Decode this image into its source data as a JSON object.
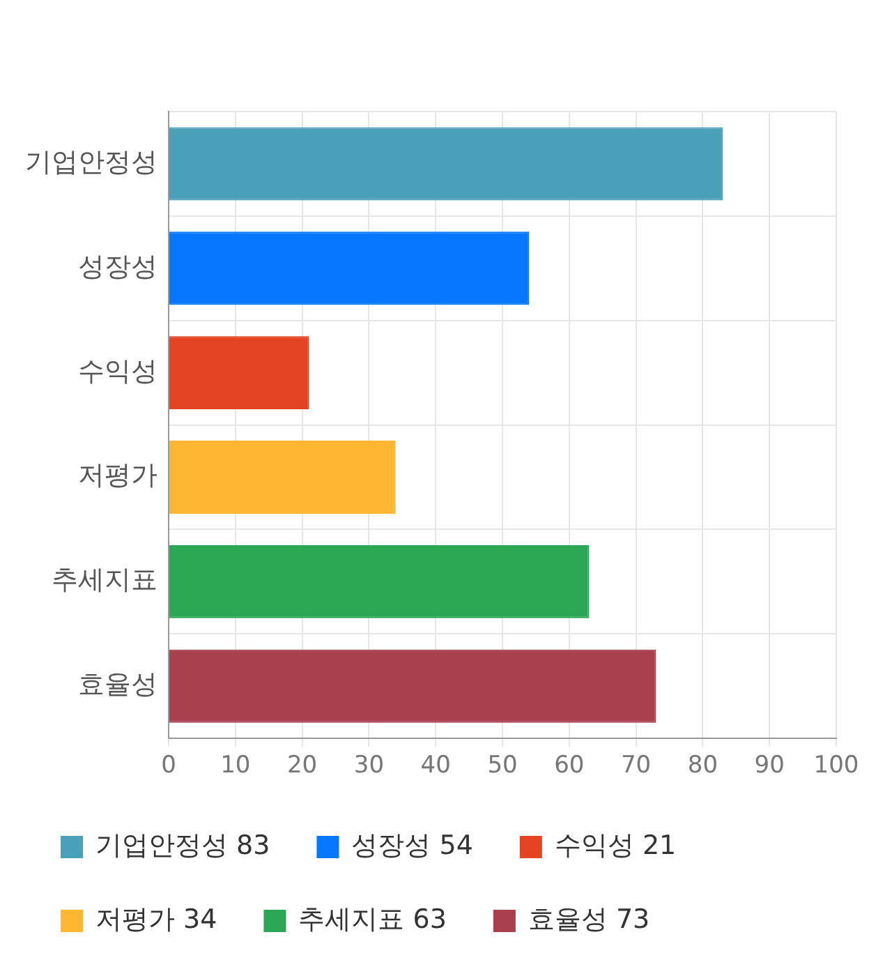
{
  "chart_data": {
    "type": "bar",
    "orientation": "horizontal",
    "stacked": true,
    "categories": [
      "기업안정성",
      "성장성",
      "수익성",
      "저평가",
      "추세지표",
      "효율성"
    ],
    "series": [
      {
        "name": "기업안정성 83",
        "color": "#4aa0b8",
        "values": [
          83,
          null,
          null,
          null,
          null,
          null
        ]
      },
      {
        "name": "성장성 54",
        "color": "#0578ff",
        "values": [
          null,
          54,
          null,
          null,
          null,
          null
        ]
      },
      {
        "name": "수익성 21",
        "color": "#e34524",
        "values": [
          null,
          null,
          21,
          null,
          null,
          null
        ]
      },
      {
        "name": "저평가 34",
        "color": "#ffb733",
        "values": [
          null,
          null,
          null,
          34,
          null,
          null
        ]
      },
      {
        "name": "추세지표 63",
        "color": "#2aa655",
        "values": [
          null,
          null,
          null,
          null,
          63,
          null
        ]
      },
      {
        "name": "효율성 73",
        "color": "#a8404e",
        "values": [
          null,
          null,
          null,
          null,
          null,
          73
        ]
      }
    ],
    "xlim": [
      0,
      100
    ],
    "xticks": [
      0,
      10,
      20,
      30,
      40,
      50,
      60,
      70,
      80,
      90,
      100
    ],
    "grid": true,
    "legend": "bottom"
  }
}
